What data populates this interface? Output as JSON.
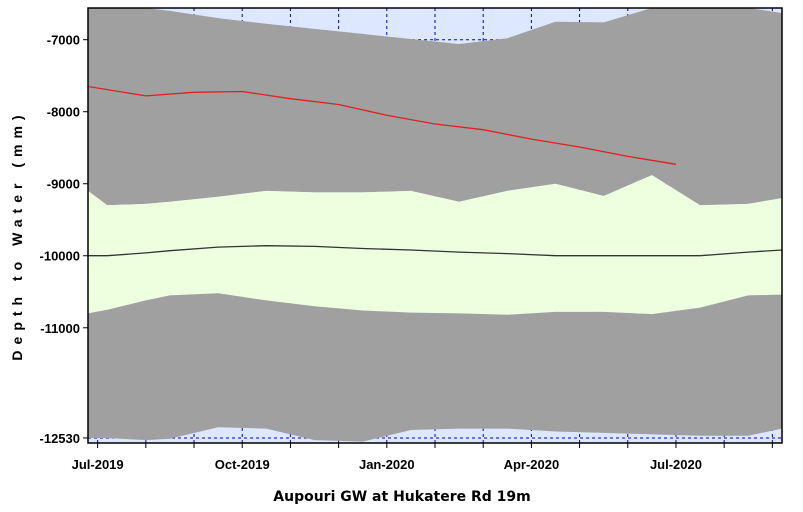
{
  "chart_data": {
    "type": "area",
    "title": "",
    "xlabel": "Aupouri GW at Hukatere Rd 19m",
    "ylabel": "Depth to Water (mm)",
    "ylim": [
      -12600,
      -6560
    ],
    "y_ticks": [
      -7000,
      -8000,
      -9000,
      -10000,
      -11000,
      -12530
    ],
    "y_tick_labels": [
      "-7000",
      "-8000",
      "-9000",
      "-10000",
      "-11000",
      "-12530"
    ],
    "x_ticks": [
      0,
      3,
      6,
      9,
      12
    ],
    "x_tick_labels": [
      "Jul-2019",
      "Oct-2019",
      "Jan-2020",
      "Apr-2020",
      "Jul-2020"
    ],
    "xlim": [
      -0.2,
      14.2
    ],
    "grid": true,
    "background_color": "#dde8ff",
    "colors": {
      "outer_band": "#a0a0a0",
      "inner_band": "#eeffe0",
      "median": "#333333",
      "current": "#e02020",
      "grid": "#0000cc"
    },
    "x": [
      -0.2,
      0.2,
      1.0,
      1.5,
      2.5,
      3.5,
      4.5,
      5.5,
      6.5,
      7.5,
      8.5,
      9.5,
      10.5,
      11.5,
      12.5,
      13.5,
      14.2
    ],
    "series": [
      {
        "values": [
          -6560,
          -6560,
          -6560,
          -6600,
          -6700,
          -6780,
          -6850,
          -6920,
          -6990,
          -7060,
          -6980,
          -6750,
          -6760,
          -6560,
          -6560,
          -6560,
          -6630
        ]
      },
      {
        "values": [
          -9100,
          -9300,
          -9280,
          -9250,
          -9180,
          -9100,
          -9120,
          -9120,
          -9100,
          -9250,
          -9100,
          -9000,
          -9170,
          -8880,
          -9300,
          -9280,
          -9200
        ]
      },
      {
        "values": [
          -10000,
          -10000,
          -9960,
          -9930,
          -9880,
          -9860,
          -9870,
          -9900,
          -9920,
          -9950,
          -9970,
          -10000,
          -10000,
          -10000,
          -10000,
          -9950,
          -9920
        ]
      },
      {
        "values": [
          -10800,
          -10750,
          -10620,
          -10550,
          -10520,
          -10620,
          -10700,
          -10760,
          -10790,
          -10800,
          -10820,
          -10780,
          -10780,
          -10810,
          -10720,
          -10550,
          -10540
        ]
      },
      {
        "values": [
          -12530,
          -12530,
          -12560,
          -12540,
          -12380,
          -12400,
          -12560,
          -12580,
          -12420,
          -12400,
          -12400,
          -12440,
          -12460,
          -12480,
          -12500,
          -12500,
          -12400
        ]
      },
      {
        "x": [
          -0.2,
          1.0,
          2.0,
          3.0,
          4.0,
          5.0,
          6.0,
          7.0,
          8.0,
          9.0,
          10.0,
          11.0,
          12.0
        ],
        "values": [
          -7650,
          -7780,
          -7730,
          -7720,
          -7820,
          -7900,
          -8050,
          -8170,
          -8250,
          -8380,
          -8490,
          -8620,
          -8730
        ]
      }
    ]
  }
}
